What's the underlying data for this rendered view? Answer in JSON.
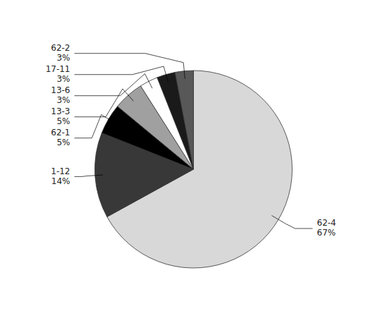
{
  "chart_data": {
    "type": "pie",
    "categories": [
      "62-4",
      "1-12",
      "62-1",
      "13-3",
      "13-6",
      "17-11",
      "62-2"
    ],
    "values": [
      67,
      14,
      5,
      5,
      3,
      3,
      3
    ],
    "value_labels": [
      "67%",
      "14%",
      "5%",
      "5%",
      "3%",
      "3%",
      "3%"
    ],
    "colors": [
      "#d8d8d8",
      "#383838",
      "#000000",
      "#a0a0a0",
      "#ffffff",
      "#1a1a1a",
      "#585858"
    ],
    "data_labels": true
  }
}
